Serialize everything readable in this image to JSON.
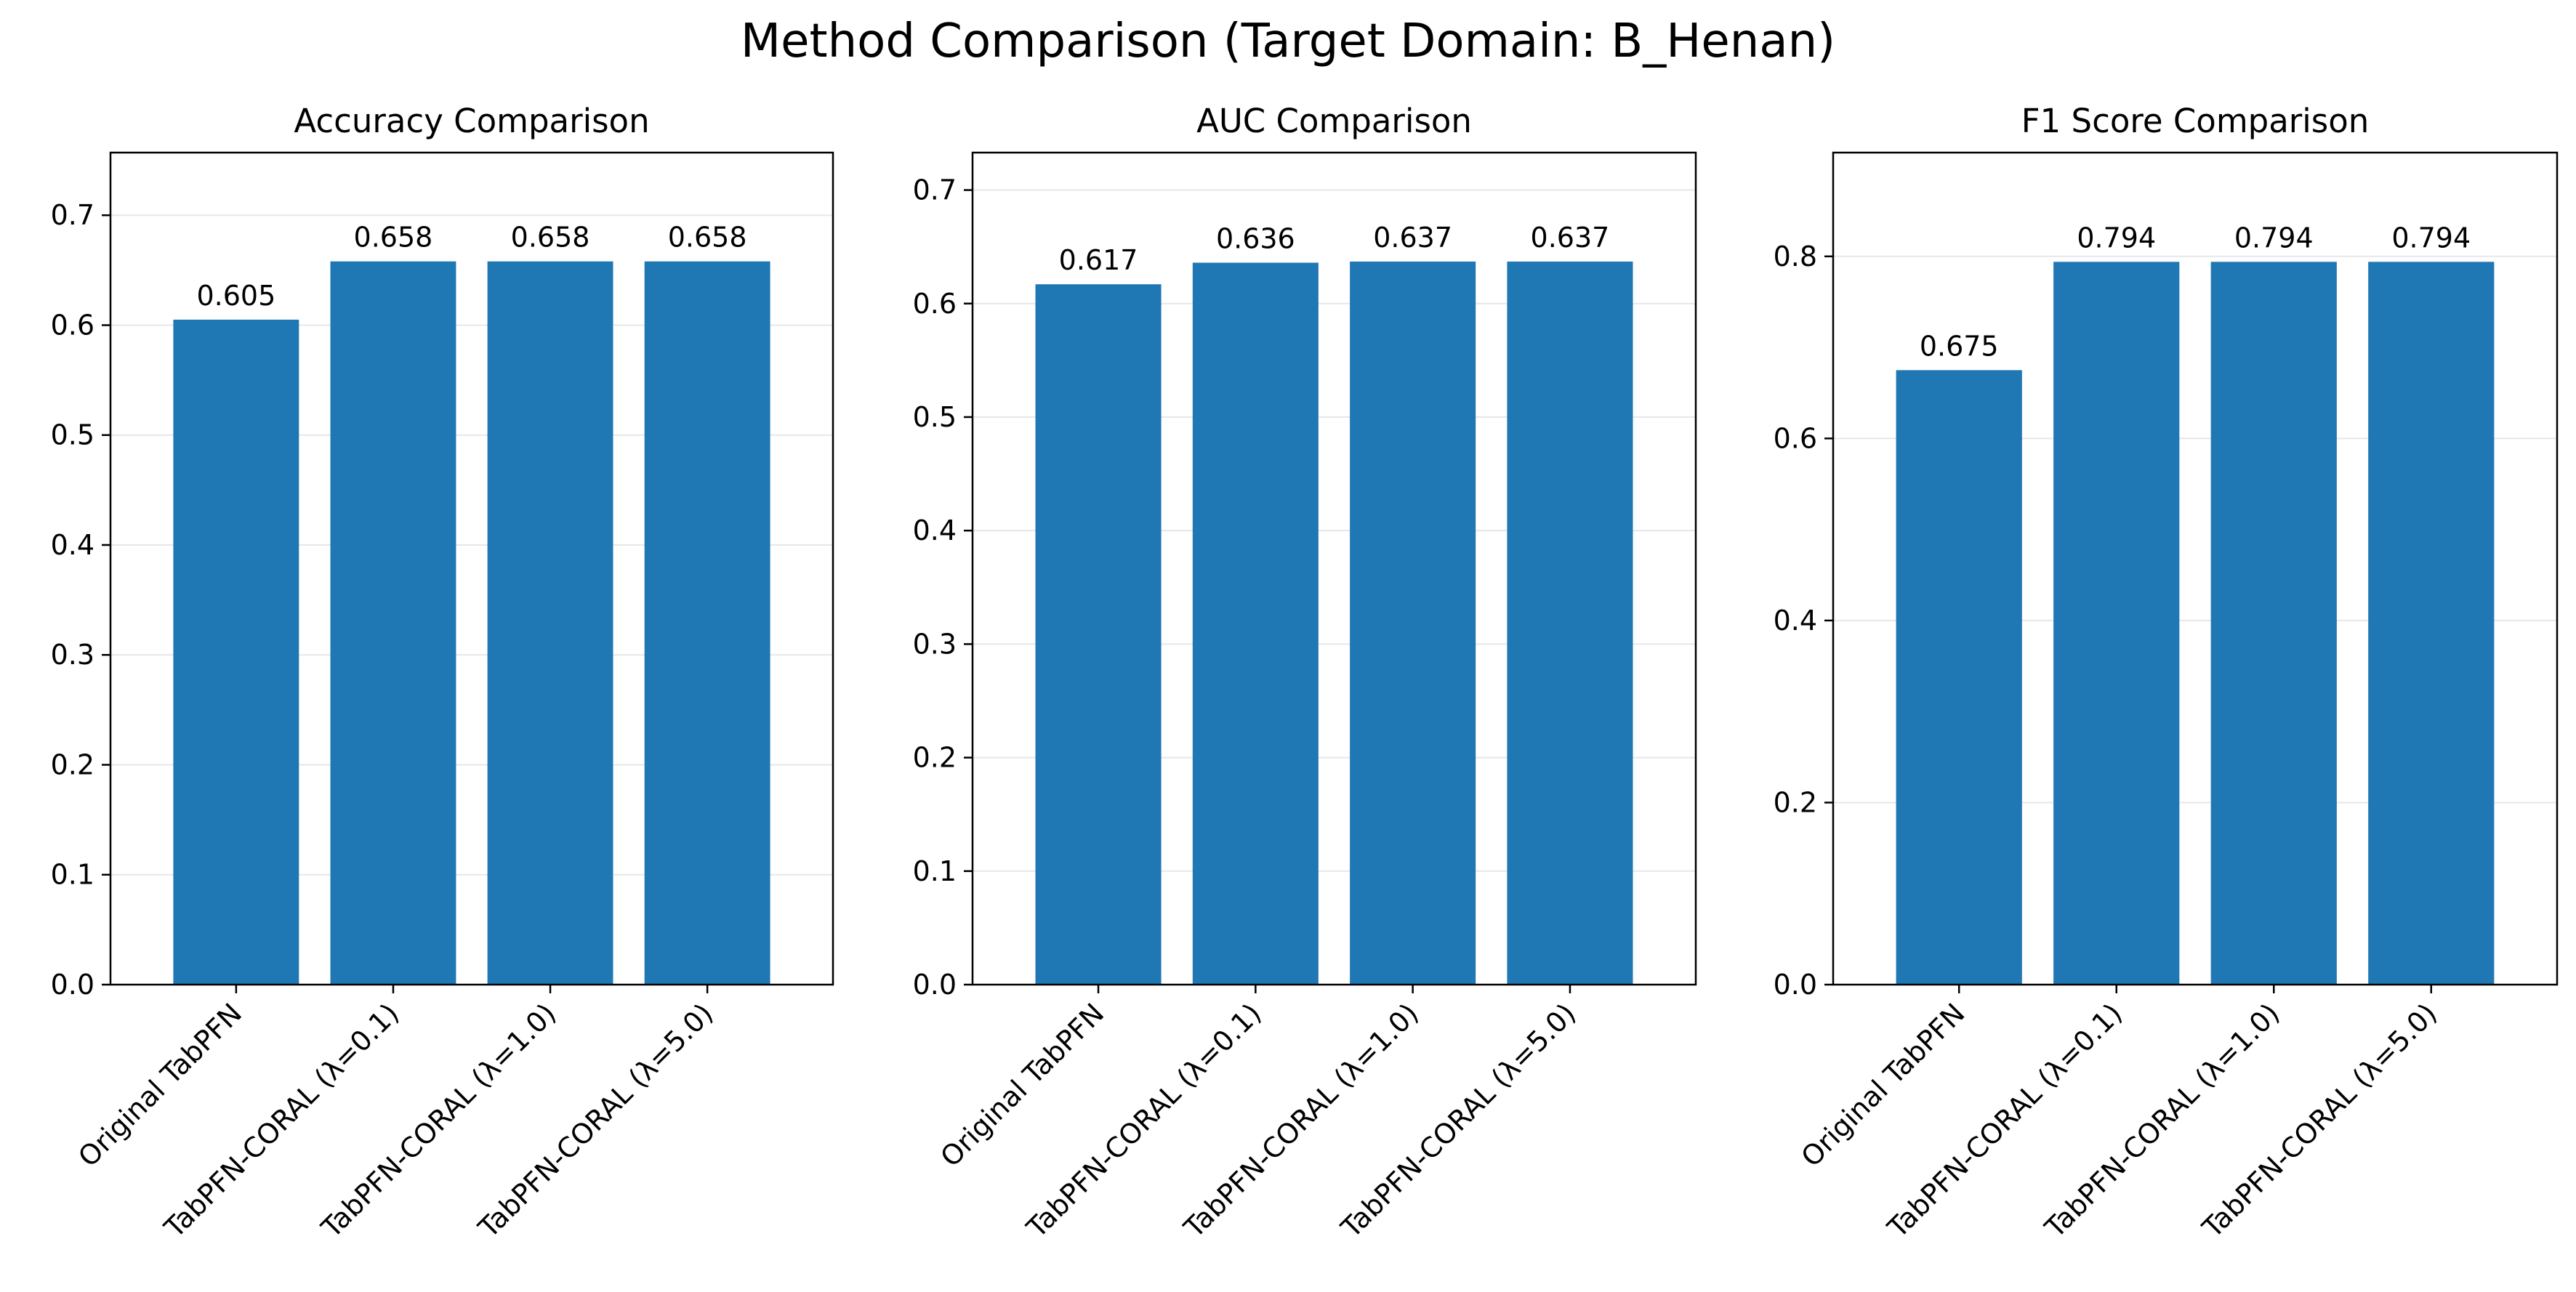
{
  "figure": {
    "title": "Method Comparison (Target Domain: B_Henan)"
  },
  "chart_data": [
    {
      "type": "bar",
      "title": "Accuracy Comparison",
      "xlabel": "",
      "ylabel": "",
      "categories": [
        "Original TabPFN",
        "TabPFN-CORAL (λ=0.1)",
        "TabPFN-CORAL (λ=1.0)",
        "TabPFN-CORAL (λ=5.0)"
      ],
      "values": [
        0.605,
        0.658,
        0.658,
        0.658
      ],
      "value_labels": [
        "0.605",
        "0.658",
        "0.658",
        "0.658"
      ],
      "ylim": [
        0,
        0.757
      ],
      "yticks": [
        0.0,
        0.1,
        0.2,
        0.3,
        0.4,
        0.5,
        0.6,
        0.7
      ],
      "ytick_labels": [
        "0.0",
        "0.1",
        "0.2",
        "0.3",
        "0.4",
        "0.5",
        "0.6",
        "0.7"
      ],
      "grid": "y",
      "color": "#1f77b4"
    },
    {
      "type": "bar",
      "title": "AUC Comparison",
      "xlabel": "",
      "ylabel": "",
      "categories": [
        "Original TabPFN",
        "TabPFN-CORAL (λ=0.1)",
        "TabPFN-CORAL (λ=1.0)",
        "TabPFN-CORAL (λ=5.0)"
      ],
      "values": [
        0.617,
        0.636,
        0.637,
        0.637
      ],
      "value_labels": [
        "0.617",
        "0.636",
        "0.637",
        "0.637"
      ],
      "ylim": [
        0,
        0.733
      ],
      "yticks": [
        0.0,
        0.1,
        0.2,
        0.3,
        0.4,
        0.5,
        0.6,
        0.7
      ],
      "ytick_labels": [
        "0.0",
        "0.1",
        "0.2",
        "0.3",
        "0.4",
        "0.5",
        "0.6",
        "0.7"
      ],
      "grid": "y",
      "color": "#1f77b4"
    },
    {
      "type": "bar",
      "title": "F1 Score Comparison",
      "xlabel": "",
      "ylabel": "",
      "categories": [
        "Original TabPFN",
        "TabPFN-CORAL (λ=0.1)",
        "TabPFN-CORAL (λ=1.0)",
        "TabPFN-CORAL (λ=5.0)"
      ],
      "values": [
        0.675,
        0.794,
        0.794,
        0.794
      ],
      "value_labels": [
        "0.675",
        "0.794",
        "0.794",
        "0.794"
      ],
      "ylim": [
        0,
        0.914
      ],
      "yticks": [
        0.0,
        0.2,
        0.4,
        0.6,
        0.8
      ],
      "ytick_labels": [
        "0.0",
        "0.2",
        "0.4",
        "0.6",
        "0.8"
      ],
      "grid": "y",
      "color": "#1f77b4"
    }
  ]
}
